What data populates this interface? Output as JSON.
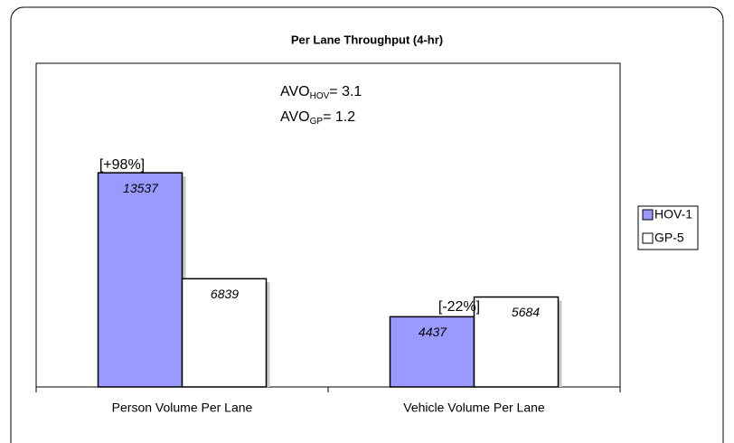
{
  "chart_data": {
    "type": "bar",
    "title": "Per Lane Throughput (4-hr)",
    "categories": [
      "Person Volume Per Lane",
      "Vehicle Volume Per Lane"
    ],
    "series": [
      {
        "name": "HOV-1",
        "color": "#9999ff",
        "values": [
          13537,
          4437
        ]
      },
      {
        "name": "GP-5",
        "color": "#ffffff",
        "values": [
          6839,
          5684
        ]
      }
    ],
    "ylim": [
      0,
      20000
    ],
    "annotations": [
      {
        "main": "AVO",
        "sub": "HOV",
        "rest": "= 3.1"
      },
      {
        "main": "AVO",
        "sub": "GP",
        "rest": "= 1.2"
      }
    ],
    "change_labels": [
      "[+98%]",
      "[-22%]"
    ],
    "legend": "right"
  }
}
